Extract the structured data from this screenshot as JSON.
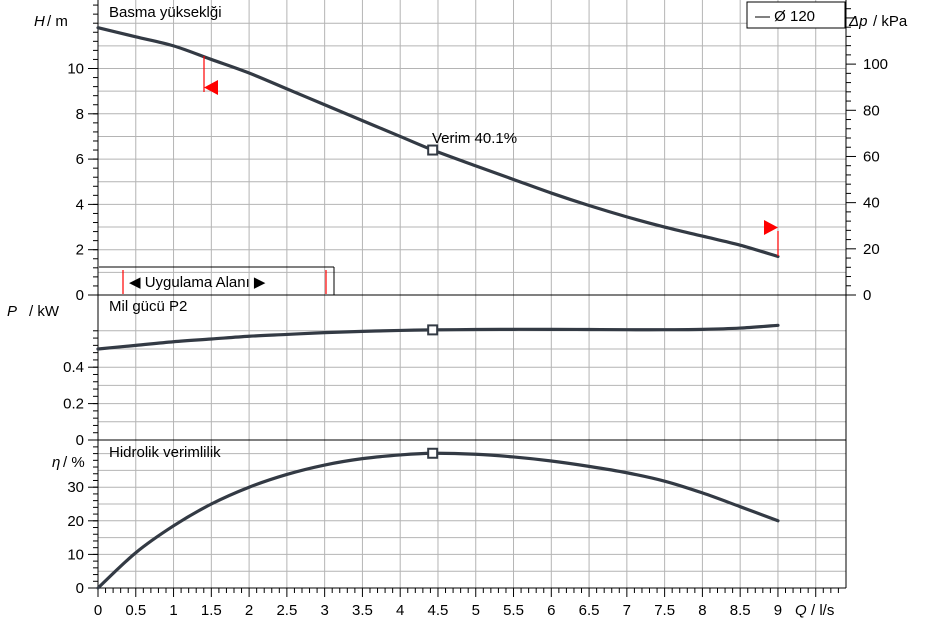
{
  "chart_data": [
    {
      "type": "line",
      "title": "Basma yükseklği",
      "ylabel_symbol": "H",
      "ylabel_unit": "/ m",
      "y2label_symbol": "Δp",
      "y2label_unit": "/ kPa",
      "legend": "— Ø 120",
      "ylim": [
        0,
        13
      ],
      "yticks": [
        "0",
        "2",
        "4",
        "6",
        "8",
        "10"
      ],
      "y2ticks": [
        "0",
        "20",
        "40",
        "60",
        "80",
        "100"
      ],
      "x": [
        0,
        0.5,
        1,
        1.5,
        2,
        2.5,
        3,
        3.5,
        4,
        4.43,
        5,
        5.5,
        6,
        6.5,
        7,
        7.5,
        8,
        8.5,
        9
      ],
      "series": [
        {
          "name": "Ø 120",
          "values": [
            11.8,
            11.4,
            11.0,
            10.4,
            9.8,
            9.1,
            8.4,
            7.7,
            7.0,
            6.4,
            5.7,
            5.1,
            4.5,
            3.95,
            3.45,
            3.0,
            2.6,
            2.2,
            1.7
          ]
        }
      ],
      "operating_point": {
        "x": 4.43,
        "y": 6.4,
        "label": "Verim  40.1%"
      },
      "range_label": "◀ Uygulama Alanı ▶"
    },
    {
      "type": "line",
      "title": "Mil gücü P2",
      "ylabel_symbol": "P",
      "ylabel_unit": "/ kW",
      "ylim": [
        0,
        0.65
      ],
      "yticks": [
        "0",
        "0.2",
        "0.4"
      ],
      "x": [
        0,
        0.5,
        1,
        1.5,
        2,
        2.5,
        3,
        3.5,
        4,
        4.43,
        5,
        5.5,
        6,
        6.5,
        7,
        7.5,
        8,
        8.5,
        9
      ],
      "series": [
        {
          "values": [
            0.5,
            0.52,
            0.54,
            0.555,
            0.57,
            0.58,
            0.59,
            0.597,
            0.602,
            0.605,
            0.607,
            0.608,
            0.608,
            0.607,
            0.606,
            0.606,
            0.608,
            0.615,
            0.63
          ]
        }
      ],
      "operating_point": {
        "x": 4.43,
        "y": 0.605
      }
    },
    {
      "type": "line",
      "title": "Hidrolik verimlilik",
      "ylabel_symbol": "η",
      "ylabel_unit": "/ %",
      "ylim": [
        0,
        44
      ],
      "yticks": [
        "0",
        "10",
        "20",
        "30"
      ],
      "xlabel_symbol": "Q",
      "xlabel_unit": "/ l/s",
      "xticks": [
        "0",
        "0.5",
        "1",
        "1.5",
        "2",
        "2.5",
        "3",
        "3.5",
        "4",
        "4.5",
        "5",
        "5.5",
        "6",
        "6.5",
        "7",
        "7.5",
        "8",
        "8.5",
        "9"
      ],
      "x": [
        0,
        0.5,
        1,
        1.5,
        2,
        2.5,
        3,
        3.5,
        4,
        4.43,
        5,
        5.5,
        6,
        6.5,
        7,
        7.5,
        8,
        8.5,
        9
      ],
      "series": [
        {
          "values": [
            0,
            10.5,
            18.5,
            25,
            30,
            33.8,
            36.6,
            38.5,
            39.6,
            40.1,
            39.8,
            39,
            37.8,
            36.2,
            34.3,
            31.8,
            28.3,
            24.2,
            20
          ]
        }
      ],
      "operating_point": {
        "x": 4.43,
        "y": 40.1
      }
    }
  ],
  "colors": {
    "curve": "#333a44",
    "grid": "#b4b4b4",
    "range": "#ff0000"
  }
}
